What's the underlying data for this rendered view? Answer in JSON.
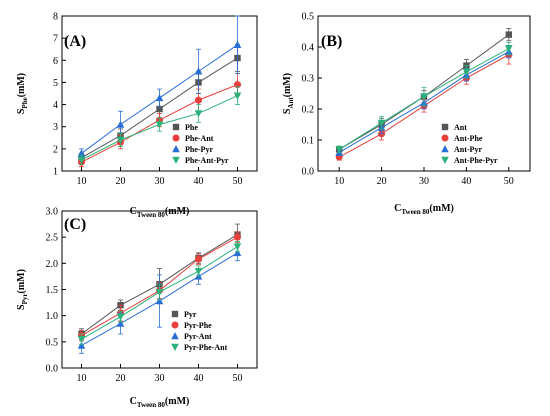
{
  "colors": {
    "series1": "#555555",
    "series2": "#e8403a",
    "series3": "#2a6fd6",
    "series4": "#2ab27a"
  },
  "chart_data": [
    {
      "panel": "(A)",
      "type": "line",
      "xlabel_main": "C",
      "xlabel_sub": "Tween 80",
      "xlabel_unit": "(mM)",
      "ylabel_main": "S",
      "ylabel_sub": "Phe",
      "ylabel_unit": "(mM)",
      "xlim": [
        5,
        55
      ],
      "ylim": [
        1,
        8
      ],
      "xticks": [
        10,
        20,
        30,
        40,
        50
      ],
      "yticks": [
        1,
        2,
        3,
        4,
        5,
        6,
        7,
        8
      ],
      "legend_position": "center-right",
      "series": [
        {
          "name": "Phe",
          "marker": "square",
          "x": [
            10,
            20,
            30,
            40,
            50
          ],
          "y": [
            1.6,
            2.6,
            3.8,
            5.0,
            6.1
          ],
          "err": [
            0.2,
            0.3,
            0.4,
            0.5,
            0.6
          ]
        },
        {
          "name": "Phe-Ant",
          "marker": "circle",
          "x": [
            10,
            20,
            30,
            40,
            50
          ],
          "y": [
            1.4,
            2.3,
            3.3,
            4.2,
            4.9
          ],
          "err": [
            0.2,
            0.3,
            0.3,
            0.5,
            0.5
          ]
        },
        {
          "name": "Phe-Pyr",
          "marker": "triangle-up",
          "x": [
            10,
            20,
            30,
            40,
            50
          ],
          "y": [
            1.8,
            3.1,
            4.3,
            5.5,
            6.7
          ],
          "err": [
            0.2,
            0.6,
            0.4,
            1.0,
            1.3
          ]
        },
        {
          "name": "Phe-Ant-Pyr",
          "marker": "triangle-down",
          "x": [
            10,
            20,
            30,
            40,
            50
          ],
          "y": [
            1.5,
            2.4,
            3.1,
            3.6,
            4.4
          ],
          "err": [
            0.2,
            0.3,
            0.3,
            0.4,
            0.4
          ]
        }
      ]
    },
    {
      "panel": "(B)",
      "type": "line",
      "xlabel_main": "C",
      "xlabel_sub": "Tween 80",
      "xlabel_unit": "(mM)",
      "ylabel_main": "S",
      "ylabel_sub": "Ant",
      "ylabel_unit": "(mM)",
      "xlim": [
        5,
        55
      ],
      "ylim": [
        0,
        0.5
      ],
      "xticks": [
        10,
        20,
        30,
        40,
        50
      ],
      "yticks": [
        0.0,
        0.1,
        0.2,
        0.3,
        0.4,
        0.5
      ],
      "ytick_labels": [
        "0.0",
        "0.1",
        "0.2",
        "0.3",
        "0.4",
        "0.5"
      ],
      "legend_position": "bottom-right",
      "series": [
        {
          "name": "Ant",
          "marker": "square",
          "x": [
            10,
            20,
            30,
            40,
            50
          ],
          "y": [
            0.07,
            0.15,
            0.24,
            0.34,
            0.44
          ],
          "err": [
            0.01,
            0.02,
            0.02,
            0.02,
            0.02
          ]
        },
        {
          "name": "Ant-Phe",
          "marker": "circle",
          "x": [
            10,
            20,
            30,
            40,
            50
          ],
          "y": [
            0.045,
            0.12,
            0.21,
            0.3,
            0.375
          ],
          "err": [
            0.01,
            0.02,
            0.02,
            0.02,
            0.03
          ]
        },
        {
          "name": "Ant-Pyr",
          "marker": "triangle-up",
          "x": [
            10,
            20,
            30,
            40,
            50
          ],
          "y": [
            0.06,
            0.14,
            0.22,
            0.31,
            0.385
          ],
          "err": [
            0.01,
            0.02,
            0.02,
            0.02,
            0.02
          ]
        },
        {
          "name": "Ant-Phe-Pyr",
          "marker": "triangle-down",
          "x": [
            10,
            20,
            30,
            40,
            50
          ],
          "y": [
            0.07,
            0.155,
            0.24,
            0.32,
            0.395
          ],
          "err": [
            0.01,
            0.02,
            0.03,
            0.02,
            0.02
          ]
        }
      ]
    },
    {
      "panel": "(C)",
      "type": "line",
      "xlabel_main": "C",
      "xlabel_sub": "Tween 80",
      "xlabel_unit": "(mM)",
      "ylabel_main": "S",
      "ylabel_sub": "Pyr",
      "ylabel_unit": "(mM)",
      "xlim": [
        5,
        55
      ],
      "ylim": [
        0,
        3.0
      ],
      "xticks": [
        10,
        20,
        30,
        40,
        50
      ],
      "yticks": [
        0.0,
        0.5,
        1.0,
        1.5,
        2.0,
        2.5,
        3.0
      ],
      "ytick_labels": [
        "0.0",
        "0.5",
        "1.0",
        "1.5",
        "2.0",
        "2.5",
        "3.0"
      ],
      "legend_position": "bottom-right",
      "series": [
        {
          "name": "Pyr",
          "marker": "square",
          "x": [
            10,
            20,
            30,
            40,
            50
          ],
          "y": [
            0.65,
            1.2,
            1.6,
            2.1,
            2.55
          ],
          "err": [
            0.1,
            0.1,
            0.3,
            0.1,
            0.2
          ]
        },
        {
          "name": "Pyr-Phe",
          "marker": "circle",
          "x": [
            10,
            20,
            30,
            40,
            50
          ],
          "y": [
            0.62,
            1.05,
            1.48,
            2.08,
            2.5
          ],
          "err": [
            0.1,
            0.15,
            0.15,
            0.1,
            0.1
          ]
        },
        {
          "name": "Pyr-Ant",
          "marker": "triangle-up",
          "x": [
            10,
            20,
            30,
            40,
            50
          ],
          "y": [
            0.43,
            0.85,
            1.28,
            1.75,
            2.2
          ],
          "err": [
            0.15,
            0.2,
            0.5,
            0.15,
            0.15
          ]
        },
        {
          "name": "Pyr-Phe-Ant",
          "marker": "triangle-down",
          "x": [
            10,
            20,
            30,
            40,
            50
          ],
          "y": [
            0.55,
            0.98,
            1.45,
            1.85,
            2.32
          ],
          "err": [
            0.1,
            0.1,
            0.15,
            0.1,
            0.1
          ]
        }
      ]
    }
  ]
}
